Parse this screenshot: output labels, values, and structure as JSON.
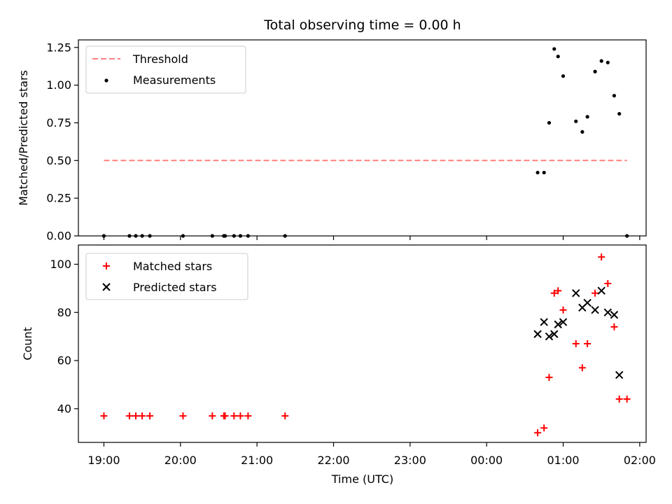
{
  "chart_data": [
    {
      "type": "scatter",
      "title": "Total observing time = 0.00 h",
      "xlabel": "",
      "ylabel": "Matched/Predicted stars",
      "ylim": [
        0,
        1.3
      ],
      "yticks": [
        0.0,
        0.25,
        0.5,
        0.75,
        1.0,
        1.25
      ],
      "ytick_labels": [
        "0.00",
        "0.25",
        "0.50",
        "0.75",
        "1.00",
        "1.25"
      ],
      "legend_placement": "top-left",
      "series": [
        {
          "name": "Threshold",
          "style": "dashed-line",
          "color": "#ff7f7f",
          "x": [
            "19:00",
            "01:50"
          ],
          "y": [
            0.5,
            0.5
          ]
        },
        {
          "name": "Measurements",
          "style": "dot",
          "color": "#000000",
          "x": [
            "19:00",
            "19:20",
            "19:25",
            "19:30",
            "19:36",
            "20:02",
            "20:25",
            "20:34",
            "20:35",
            "20:42",
            "20:47",
            "20:53",
            "21:22",
            "00:40",
            "00:45",
            "00:49",
            "00:53",
            "00:56",
            "01:00",
            "01:10",
            "01:15",
            "01:19",
            "01:25",
            "01:30",
            "01:35",
            "01:40",
            "01:44",
            "01:50"
          ],
          "y": [
            0,
            0,
            0,
            0,
            0,
            0,
            0,
            0,
            0,
            0,
            0,
            0,
            0,
            0.42,
            0.42,
            0.75,
            1.24,
            1.19,
            1.06,
            0.76,
            0.69,
            0.79,
            1.09,
            1.16,
            1.15,
            0.93,
            0.81,
            0
          ]
        }
      ]
    },
    {
      "type": "scatter",
      "title": "",
      "xlabel": "Time (UTC)",
      "ylabel": "Count",
      "ylim": [
        26,
        108
      ],
      "yticks": [
        40,
        60,
        80,
        100
      ],
      "ytick_labels": [
        "40",
        "60",
        "80",
        "100"
      ],
      "xlim": [
        "18:40",
        "02:05"
      ],
      "xticks": [
        "19:00",
        "20:00",
        "21:00",
        "22:00",
        "23:00",
        "00:00",
        "01:00",
        "02:00"
      ],
      "legend_placement": "top-left",
      "series": [
        {
          "name": "Matched stars",
          "style": "plus",
          "color": "#ff0000",
          "x": [
            "19:00",
            "19:20",
            "19:25",
            "19:30",
            "19:36",
            "20:02",
            "20:25",
            "20:34",
            "20:35",
            "20:42",
            "20:47",
            "20:53",
            "21:22",
            "00:40",
            "00:45",
            "00:49",
            "00:53",
            "00:56",
            "01:00",
            "01:10",
            "01:15",
            "01:19",
            "01:25",
            "01:30",
            "01:35",
            "01:40",
            "01:44",
            "01:50"
          ],
          "y": [
            37,
            37,
            37,
            37,
            37,
            37,
            37,
            37,
            37,
            37,
            37,
            37,
            37,
            30,
            32,
            53,
            88,
            89,
            81,
            67,
            57,
            67,
            88,
            103,
            92,
            74,
            44,
            44
          ]
        },
        {
          "name": "Predicted stars",
          "style": "x",
          "color": "#000000",
          "x": [
            "00:40",
            "00:45",
            "00:49",
            "00:53",
            "00:56",
            "01:00",
            "01:10",
            "01:15",
            "01:19",
            "01:25",
            "01:30",
            "01:35",
            "01:40",
            "01:44"
          ],
          "y": [
            71,
            76,
            70,
            71,
            75,
            76,
            88,
            82,
            84,
            81,
            89,
            80,
            79,
            54
          ]
        }
      ]
    }
  ]
}
